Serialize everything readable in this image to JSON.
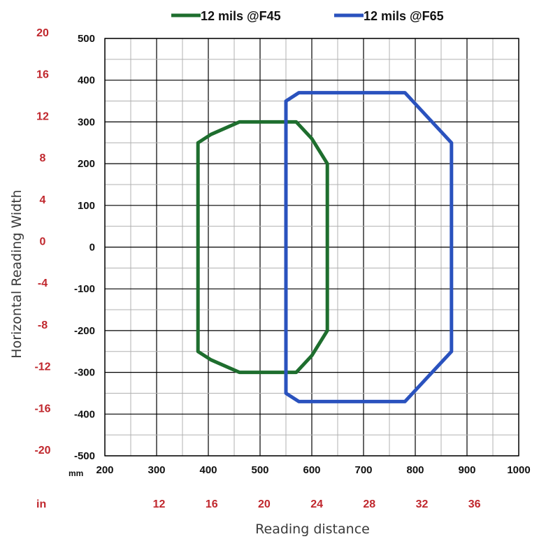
{
  "chart_data": {
    "type": "line",
    "xlabel": "Reading distance",
    "ylabel": "Horizontal Reading Width",
    "x_unit_label": "mm",
    "x_alt_unit_label": "in",
    "xlim": [
      200,
      1000
    ],
    "ylim": [
      -500,
      500
    ],
    "grid": true,
    "legend_position": "top",
    "x_ticks_mm": [
      200,
      300,
      400,
      500,
      600,
      700,
      800,
      900,
      1000
    ],
    "x_ticks_in": [
      12,
      16,
      20,
      24,
      28,
      32,
      36
    ],
    "y_ticks_mm": [
      500,
      400,
      300,
      200,
      100,
      0,
      -100,
      -200,
      -300,
      -400,
      -500
    ],
    "y_ticks_in": [
      20,
      16,
      12,
      8,
      4,
      0,
      -4,
      -8,
      -12,
      -16,
      -20
    ],
    "colors": {
      "inch_labels": "#c0272d",
      "grid_major": "#000000",
      "grid_minor": "#b0b0b0"
    },
    "series": [
      {
        "name": "12 mils @F45",
        "color": "#1e6e2e",
        "points": [
          [
            380,
            250
          ],
          [
            405,
            270
          ],
          [
            460,
            300
          ],
          [
            570,
            300
          ],
          [
            600,
            260
          ],
          [
            630,
            200
          ],
          [
            630,
            -200
          ],
          [
            600,
            -260
          ],
          [
            570,
            -300
          ],
          [
            460,
            -300
          ],
          [
            405,
            -270
          ],
          [
            380,
            -250
          ],
          [
            380,
            250
          ]
        ]
      },
      {
        "name": "12 mils @F65",
        "color": "#2a52be",
        "points": [
          [
            550,
            350
          ],
          [
            575,
            370
          ],
          [
            780,
            370
          ],
          [
            870,
            250
          ],
          [
            870,
            -250
          ],
          [
            780,
            -370
          ],
          [
            575,
            -370
          ],
          [
            550,
            -350
          ],
          [
            550,
            350
          ]
        ]
      }
    ]
  }
}
